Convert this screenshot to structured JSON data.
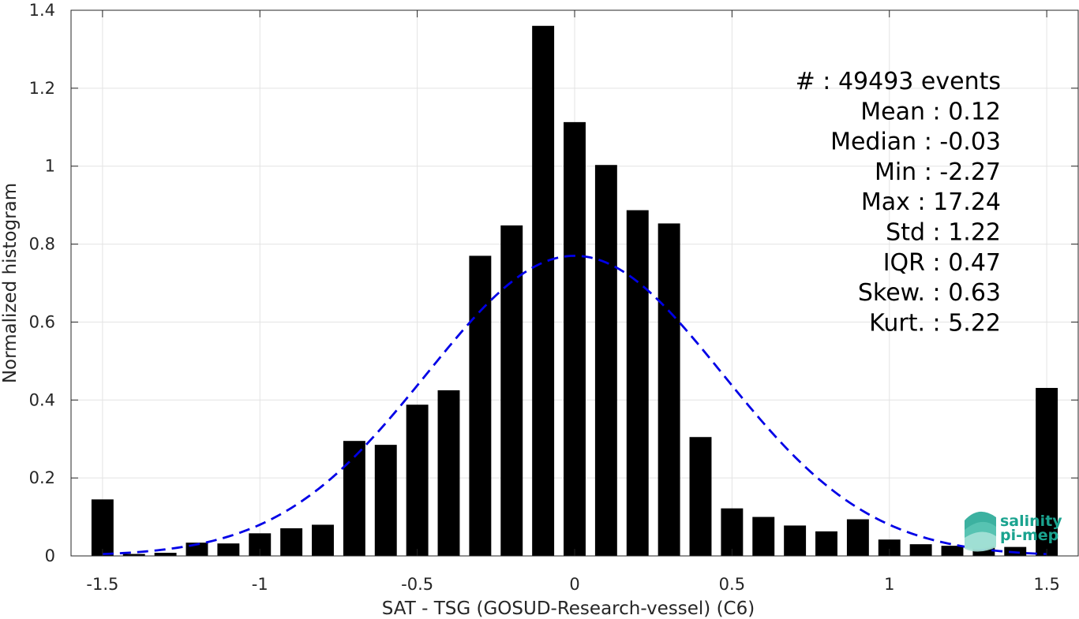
{
  "chart_data": {
    "type": "bar",
    "xlabel": "SAT - TSG (GOSUD-Research-vessel) (C6)",
    "ylabel": "Normalized histogram",
    "xlim": [
      -1.6,
      1.6
    ],
    "ylim": [
      0,
      1.4
    ],
    "xticks": [
      -1.5,
      -1,
      -0.5,
      0,
      0.5,
      1,
      1.5
    ],
    "xtick_labels": [
      "-1.5",
      "-1",
      "-0.5",
      "0",
      "0.5",
      "1",
      "1.5"
    ],
    "yticks": [
      0,
      0.2,
      0.4,
      0.6,
      0.8,
      1,
      1.2,
      1.4
    ],
    "ytick_labels": [
      "0",
      "0.2",
      "0.4",
      "0.6",
      "0.8",
      "1",
      "1.2",
      "1.4"
    ],
    "grid": true,
    "bar_width": 0.07,
    "x": [
      -1.5,
      -1.4,
      -1.3,
      -1.2,
      -1.1,
      -1.0,
      -0.9,
      -0.8,
      -0.7,
      -0.6,
      -0.5,
      -0.4,
      -0.3,
      -0.2,
      -0.1,
      0.0,
      0.1,
      0.2,
      0.3,
      0.4,
      0.5,
      0.6,
      0.7,
      0.8,
      0.9,
      1.0,
      1.1,
      1.2,
      1.3,
      1.4,
      1.5
    ],
    "values": [
      0.145,
      0.005,
      0.008,
      0.034,
      0.032,
      0.058,
      0.071,
      0.08,
      0.295,
      0.285,
      0.388,
      0.425,
      0.77,
      0.848,
      1.36,
      1.113,
      1.003,
      0.887,
      0.853,
      0.305,
      0.122,
      0.1,
      0.078,
      0.063,
      0.094,
      0.042,
      0.03,
      0.026,
      0.03,
      0.023,
      0.431
    ],
    "bar_color": "#000000",
    "fit": {
      "type": "gaussian",
      "mean": 0.0,
      "std": 0.47,
      "peak": 0.77,
      "x_range": [
        -1.5,
        1.5
      ],
      "style": "dashed",
      "color": "#0000e6"
    }
  },
  "stats": [
    {
      "label": "#  ",
      "value": ": 49493 events"
    },
    {
      "label": "Mean",
      "value": ": 0.12"
    },
    {
      "label": "Median",
      "value": ": -0.03"
    },
    {
      "label": "Min",
      "value": ": -2.27"
    },
    {
      "label": "Max",
      "value": ": 17.24"
    },
    {
      "label": "Std",
      "value": ": 1.22"
    },
    {
      "label": "IQR",
      "value": ": 0.47"
    },
    {
      "label": "Skew.",
      "value": ": 0.63"
    },
    {
      "label": "Kurt.",
      "value": ": 5.22"
    }
  ],
  "logo": {
    "line1": "salinity",
    "line2": "pi-mep",
    "color": "#1aa38f"
  }
}
